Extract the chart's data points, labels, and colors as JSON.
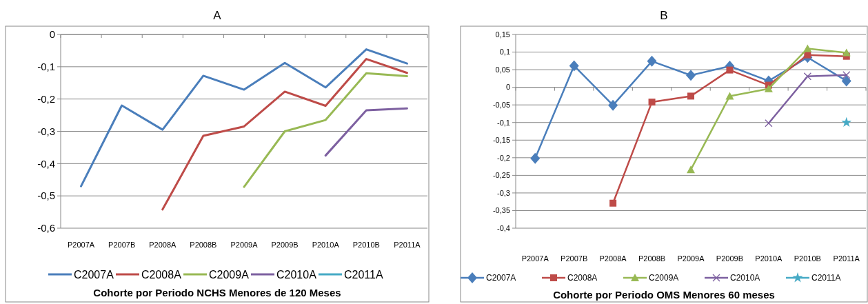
{
  "chart_data": [
    {
      "type": "line",
      "title": "A",
      "xlabel": "Cohorte por Periodo NCHS Menores de 120 Meses",
      "categories": [
        "P2007A",
        "P2007B",
        "P2008A",
        "P2008B",
        "P2009A",
        "P2009B",
        "P2010A",
        "P2010B",
        "P2011A"
      ],
      "series": [
        {
          "name": "C2007A",
          "color": "#4a7ebb",
          "values": [
            -0.47,
            -0.22,
            -0.295,
            -0.128,
            -0.171,
            -0.088,
            -0.164,
            -0.046,
            -0.09
          ]
        },
        {
          "name": "C2008A",
          "color": "#be4b48",
          "values": [
            null,
            null,
            -0.542,
            -0.314,
            -0.285,
            -0.177,
            -0.221,
            -0.076,
            -0.119
          ]
        },
        {
          "name": "C2009A",
          "color": "#98b954",
          "values": [
            null,
            null,
            null,
            null,
            -0.472,
            -0.3,
            -0.265,
            -0.12,
            -0.129
          ]
        },
        {
          "name": "C2010A",
          "color": "#7d60a0",
          "values": [
            null,
            null,
            null,
            null,
            null,
            null,
            -0.375,
            -0.235,
            -0.229
          ]
        },
        {
          "name": "C2011A",
          "color": "#46aac5",
          "values": [
            null,
            null,
            null,
            null,
            null,
            null,
            null,
            null,
            null
          ]
        }
      ],
      "ylim": [
        -0.6,
        0
      ],
      "yticks": [
        {
          "value": -0.6,
          "label": "-0,6"
        },
        {
          "value": -0.5,
          "label": "-0,5"
        },
        {
          "value": -0.4,
          "label": "-0,4"
        },
        {
          "value": -0.3,
          "label": "-0,3"
        },
        {
          "value": -0.2,
          "label": "-0,2"
        },
        {
          "value": -0.1,
          "label": "-0,1"
        },
        0
      ],
      "grid": "y",
      "legend": "bottom",
      "marker": "none"
    },
    {
      "type": "line",
      "title": "B",
      "xlabel": "Cohorte por Periodo OMS Menores 60 meses",
      "categories": [
        "P2007A",
        "P2007B",
        "P2008A",
        "P2008B",
        "P2009A",
        "P2009B",
        "P2010A",
        "P2010B",
        "P2011A"
      ],
      "series": [
        {
          "name": "C2007A",
          "color": "#4a7ebb",
          "marker": "diamond",
          "values": [
            -0.202,
            0.061,
            -0.051,
            0.074,
            0.034,
            0.06,
            0.018,
            0.085,
            0.018
          ]
        },
        {
          "name": "C2008A",
          "color": "#be4b48",
          "marker": "square",
          "values": [
            null,
            null,
            -0.329,
            -0.042,
            -0.025,
            0.049,
            0.006,
            0.092,
            0.088
          ]
        },
        {
          "name": "C2009A",
          "color": "#98b954",
          "marker": "triangle",
          "values": [
            null,
            null,
            null,
            null,
            -0.234,
            -0.025,
            -0.004,
            0.11,
            0.098
          ]
        },
        {
          "name": "C2010A",
          "color": "#7d60a0",
          "marker": "cross",
          "values": [
            null,
            null,
            null,
            null,
            null,
            null,
            -0.102,
            0.031,
            0.035
          ]
        },
        {
          "name": "C2011A",
          "color": "#46aac5",
          "marker": "star",
          "values": [
            null,
            null,
            null,
            null,
            null,
            null,
            null,
            null,
            -0.1
          ]
        }
      ],
      "ylim": [
        -0.4,
        0.15
      ],
      "yticks": [
        {
          "value": -0.4,
          "label": "-0,4"
        },
        {
          "value": -0.35,
          "label": "-0,35"
        },
        {
          "value": -0.3,
          "label": "-0,3"
        },
        {
          "value": -0.25,
          "label": "-0,25"
        },
        {
          "value": -0.2,
          "label": "-0,2"
        },
        {
          "value": -0.15,
          "label": "-0,15"
        },
        {
          "value": -0.1,
          "label": "-0,1"
        },
        {
          "value": -0.05,
          "label": "-0,05"
        },
        0,
        {
          "value": 0.05,
          "label": "0,05"
        },
        {
          "value": 0.1,
          "label": "0,1"
        },
        {
          "value": 0.15,
          "label": "0,15"
        }
      ],
      "grid": "y",
      "legend": "bottom"
    }
  ]
}
